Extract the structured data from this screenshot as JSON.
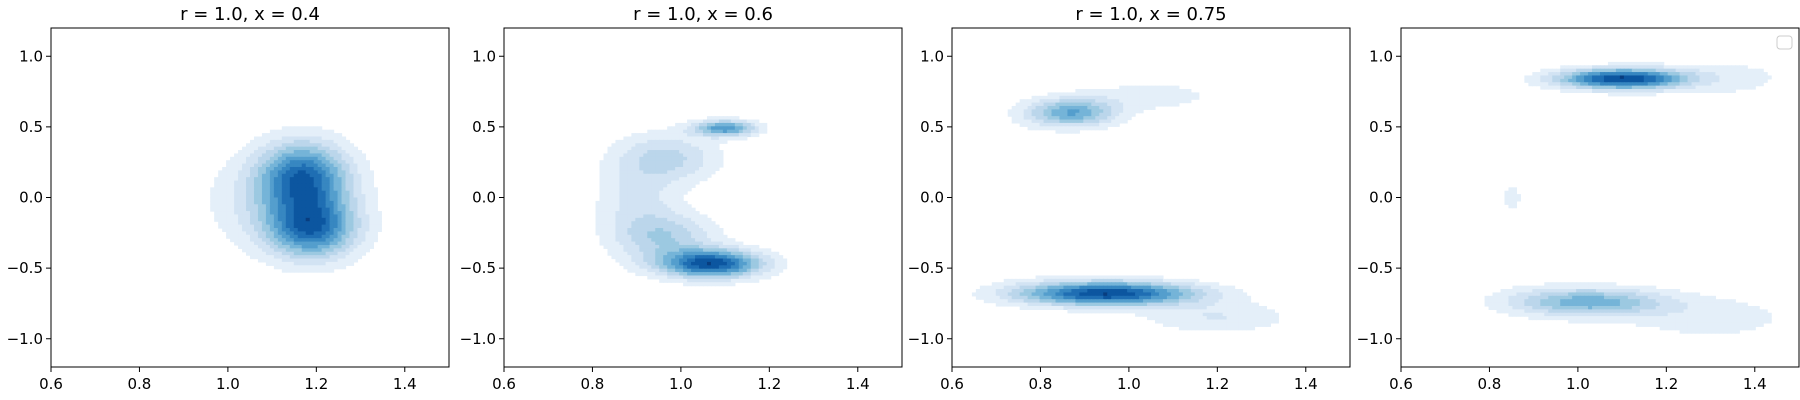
{
  "chart_data": [
    {
      "type": "kde_contour",
      "title": "r = 1.0, x = 0.4",
      "xlim": [
        0.6,
        1.5
      ],
      "ylim": [
        -1.2,
        1.2
      ],
      "xticks": [
        0.6,
        0.8,
        1.0,
        1.2,
        1.4
      ],
      "yticks": [
        -1.0,
        -0.5,
        0.0,
        0.5,
        1.0
      ],
      "xtick_labels": [
        "0.6",
        "0.8",
        "1.0",
        "1.2",
        "1.4"
      ],
      "ytick_labels": [
        "−1.0",
        "−0.5",
        "0.0",
        "0.5",
        "1.0"
      ],
      "colormap": "Blues",
      "grid": false,
      "levels": 10,
      "density_peaks": [
        {
          "x": 1.17,
          "y": 0.15,
          "sx": 0.07,
          "sy": 0.17,
          "w": 1.0
        },
        {
          "x": 1.19,
          "y": -0.22,
          "sx": 0.07,
          "sy": 0.15,
          "w": 1.0
        },
        {
          "x": 1.12,
          "y": -0.03,
          "sx": 0.12,
          "sy": 0.24,
          "w": 0.3
        }
      ]
    },
    {
      "type": "kde_contour",
      "title": "r = 1.0, x = 0.6",
      "xlim": [
        0.6,
        1.5
      ],
      "ylim": [
        -1.2,
        1.2
      ],
      "xticks": [
        0.6,
        0.8,
        1.0,
        1.2,
        1.4
      ],
      "yticks": [
        -1.0,
        -0.5,
        0.0,
        0.5,
        1.0
      ],
      "xtick_labels": [
        "0.6",
        "0.8",
        "1.0",
        "1.2",
        "1.4"
      ],
      "ytick_labels": [
        "−1.0",
        "−0.5",
        "0.0",
        "0.5",
        "1.0"
      ],
      "colormap": "Blues",
      "grid": false,
      "levels": 10,
      "density_peaks": [
        {
          "x": 1.07,
          "y": -0.47,
          "sx": 0.08,
          "sy": 0.07,
          "w": 1.0
        },
        {
          "x": 1.1,
          "y": 0.49,
          "sx": 0.05,
          "sy": 0.04,
          "w": 0.7
        },
        {
          "x": 0.9,
          "y": 0.0,
          "sx": 0.07,
          "sy": 0.25,
          "w": 0.22
        },
        {
          "x": 0.98,
          "y": 0.28,
          "sx": 0.08,
          "sy": 0.12,
          "w": 0.3
        },
        {
          "x": 0.97,
          "y": -0.28,
          "sx": 0.08,
          "sy": 0.12,
          "w": 0.35
        }
      ]
    },
    {
      "type": "kde_contour",
      "title": "r = 1.0, x = 0.75",
      "xlim": [
        0.6,
        1.5
      ],
      "ylim": [
        -1.2,
        1.2
      ],
      "xticks": [
        0.6,
        0.8,
        1.0,
        1.2,
        1.4
      ],
      "yticks": [
        -1.0,
        -0.5,
        0.0,
        0.5,
        1.0
      ],
      "xtick_labels": [
        "0.6",
        "0.8",
        "1.0",
        "1.2",
        "1.4"
      ],
      "ytick_labels": [
        "−1.0",
        "−0.5",
        "0.0",
        "0.5",
        "1.0"
      ],
      "colormap": "Blues",
      "grid": false,
      "levels": 10,
      "density_peaks": [
        {
          "x": 0.95,
          "y": -0.68,
          "sx": 0.14,
          "sy": 0.06,
          "w": 1.0
        },
        {
          "x": 0.87,
          "y": 0.6,
          "sx": 0.07,
          "sy": 0.07,
          "w": 0.6
        },
        {
          "x": 0.75,
          "y": 0.0,
          "sx": 0.05,
          "sy": 0.35,
          "w": 0.1
        },
        {
          "x": 1.2,
          "y": -0.85,
          "sx": 0.12,
          "sy": 0.08,
          "w": 0.2
        },
        {
          "x": 1.05,
          "y": 0.72,
          "sx": 0.12,
          "sy": 0.08,
          "w": 0.15
        }
      ]
    },
    {
      "type": "kde_contour",
      "title": "",
      "xlim": [
        0.6,
        1.5
      ],
      "ylim": [
        -1.2,
        1.2
      ],
      "xticks": [
        0.6,
        0.8,
        1.0,
        1.2,
        1.4
      ],
      "yticks": [
        -1.0,
        -0.5,
        0.0,
        0.5,
        1.0
      ],
      "xtick_labels": [
        "0.6",
        "0.8",
        "1.0",
        "1.2",
        "1.4"
      ],
      "ytick_labels": [
        "−1.0",
        "−0.5",
        "0.0",
        "0.5",
        "1.0"
      ],
      "colormap": "Blues",
      "grid": false,
      "levels": 10,
      "legend": {
        "placement": "top-right",
        "entries": []
      },
      "density_peaks": [
        {
          "x": 1.1,
          "y": 0.84,
          "sx": 0.1,
          "sy": 0.05,
          "w": 1.0
        },
        {
          "x": 1.02,
          "y": -0.74,
          "sx": 0.12,
          "sy": 0.07,
          "w": 0.55
        },
        {
          "x": 0.85,
          "y": 0.0,
          "sx": 0.1,
          "sy": 0.4,
          "w": 0.1
        },
        {
          "x": 1.3,
          "y": -0.85,
          "sx": 0.15,
          "sy": 0.12,
          "w": 0.15
        },
        {
          "x": 1.35,
          "y": 0.85,
          "sx": 0.12,
          "sy": 0.12,
          "w": 0.12
        }
      ]
    }
  ]
}
